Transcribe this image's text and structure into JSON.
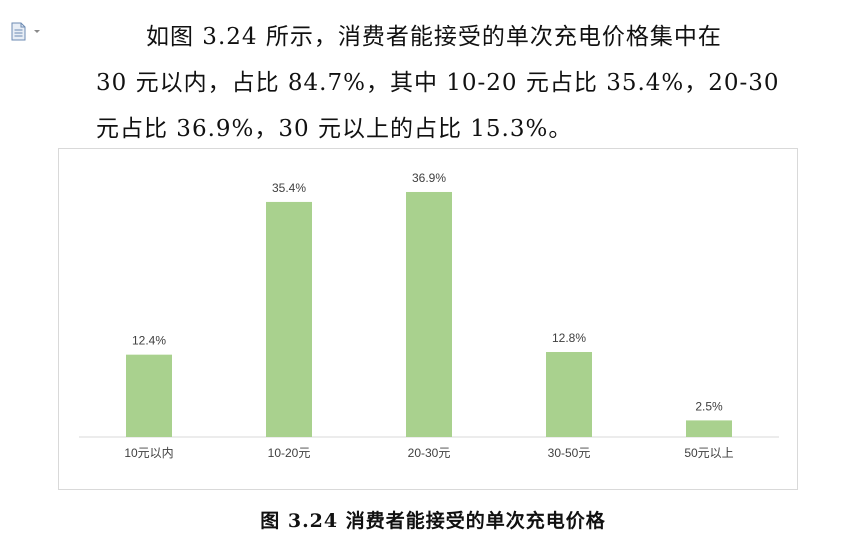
{
  "document": {
    "paragraph_lines": [
      "如图 3.24 所示，消费者能接受的单次充电价格集中在",
      "30 元以内，占比 84.7%，其中 10-20 元占比 35.4%，20-30",
      "元占比 36.9%，30 元以上的占比 15.3%。"
    ],
    "caption": "图 3.24 消费者能接受的单次充电价格",
    "icons": [
      "document-icon",
      "dropdown-arrow-icon"
    ]
  },
  "chart_data": {
    "type": "bar",
    "categories": [
      "10元以内",
      "10-20元",
      "20-30元",
      "30-50元",
      "50元以上"
    ],
    "values": [
      12.4,
      35.4,
      36.9,
      12.8,
      2.5
    ],
    "data_labels": [
      "12.4%",
      "35.4%",
      "36.9%",
      "12.8%",
      "2.5%"
    ],
    "ylim": [
      0,
      40
    ],
    "bar_color": "#a9d18e",
    "grid": false,
    "legend": "none",
    "title": "",
    "xlabel": "",
    "ylabel": ""
  }
}
